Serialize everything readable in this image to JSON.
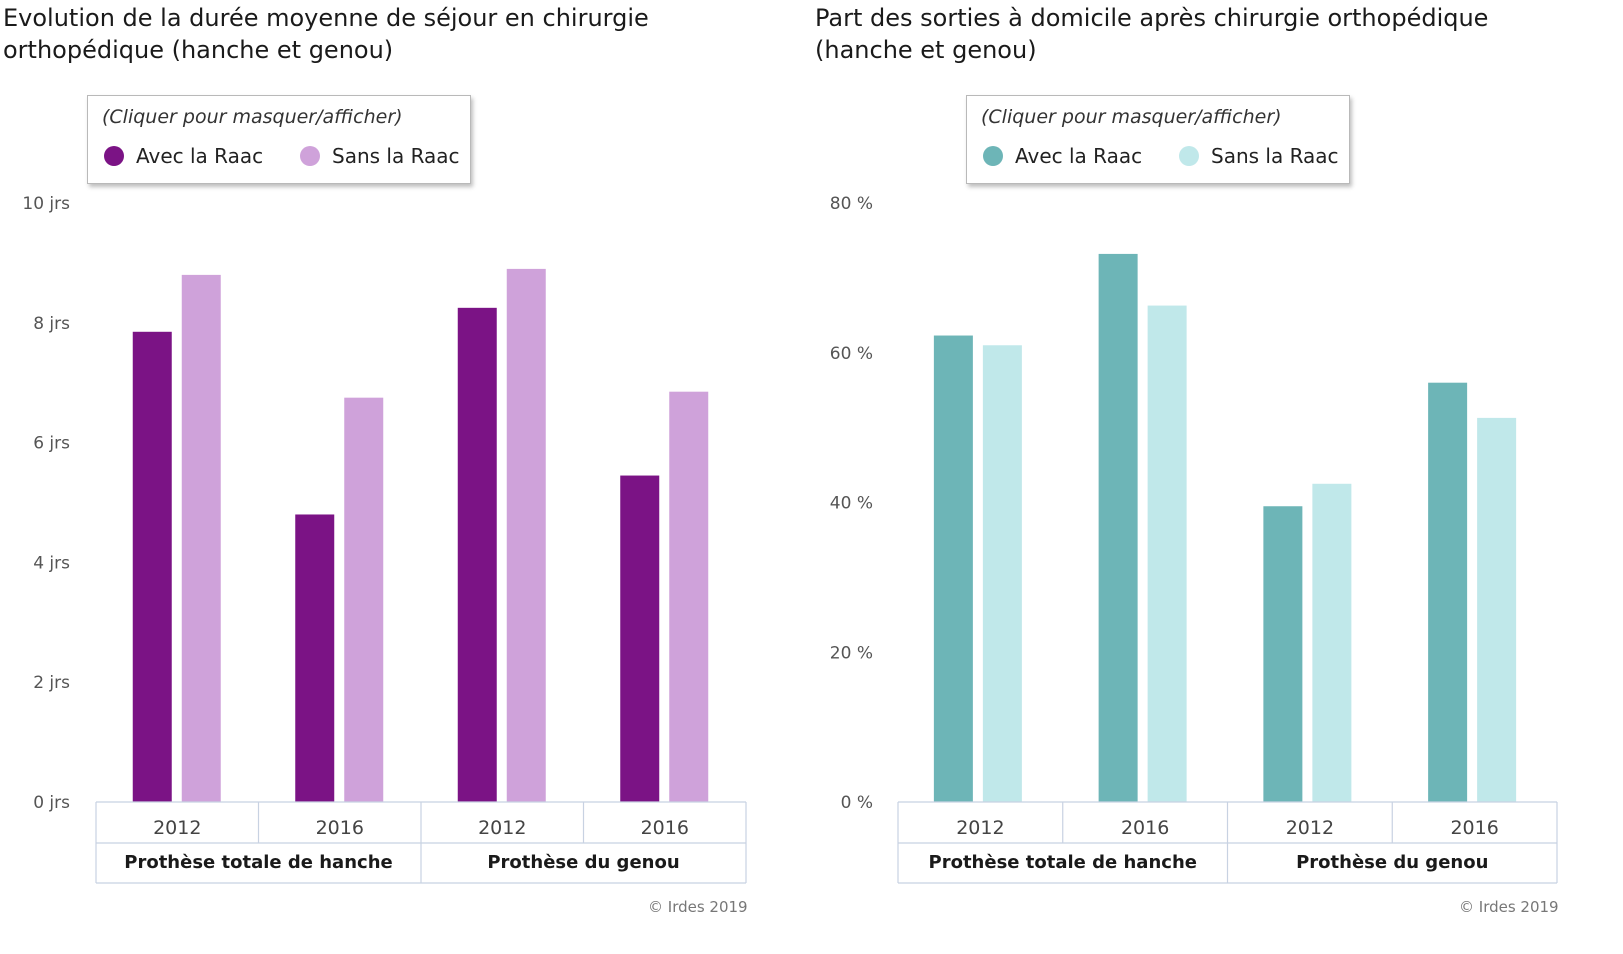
{
  "legend_hint": "(Cliquer pour masquer/afficher)",
  "credit": "© Irdes 2019",
  "chart_data": [
    {
      "type": "bar",
      "title": "Evolution de la durée moyenne de séjour en chirurgie orthopédique (hanche et genou)",
      "categories": [
        "2012",
        "2016",
        "2012",
        "2016"
      ],
      "category_groups": [
        {
          "label": "Prothèse totale de hanche",
          "categories": [
            "2012",
            "2016"
          ]
        },
        {
          "label": "Prothèse du genou",
          "categories": [
            "2012",
            "2016"
          ]
        }
      ],
      "series": [
        {
          "name": "Avec la Raac",
          "color": "#7b1385",
          "values": [
            7.85,
            4.8,
            8.25,
            5.45
          ]
        },
        {
          "name": "Sans la Raac",
          "color": "#cfa2da",
          "values": [
            8.8,
            6.75,
            8.9,
            6.85
          ]
        }
      ],
      "ylim": [
        0,
        10
      ],
      "yticks": [
        0,
        2,
        4,
        6,
        8,
        10
      ],
      "ytick_labels": [
        "0 jrs",
        "2 jrs",
        "4 jrs",
        "6 jrs",
        "8 jrs",
        "10 jrs"
      ],
      "legend": "top-left",
      "grid": false
    },
    {
      "type": "bar",
      "title": "Part des sorties à domicile après chirurgie orthopédique (hanche et genou)",
      "categories": [
        "2012",
        "2016",
        "2012",
        "2016"
      ],
      "category_groups": [
        {
          "label": "Prothèse totale de hanche",
          "categories": [
            "2012",
            "2016"
          ]
        },
        {
          "label": "Prothèse du genou",
          "categories": [
            "2012",
            "2016"
          ]
        }
      ],
      "series": [
        {
          "name": "Avec la Raac",
          "color": "#6db5b7",
          "values": [
            62.3,
            73.2,
            39.5,
            56
          ]
        },
        {
          "name": "Sans la Raac",
          "color": "#c0e8ea",
          "values": [
            61,
            66.3,
            42.5,
            51.3
          ]
        }
      ],
      "ylim": [
        0,
        80
      ],
      "yticks": [
        0,
        20,
        40,
        60,
        80
      ],
      "ytick_labels": [
        "0 %",
        "20 %",
        "40 %",
        "60 %",
        "80 %"
      ],
      "legend": "top-left",
      "grid": false
    }
  ]
}
